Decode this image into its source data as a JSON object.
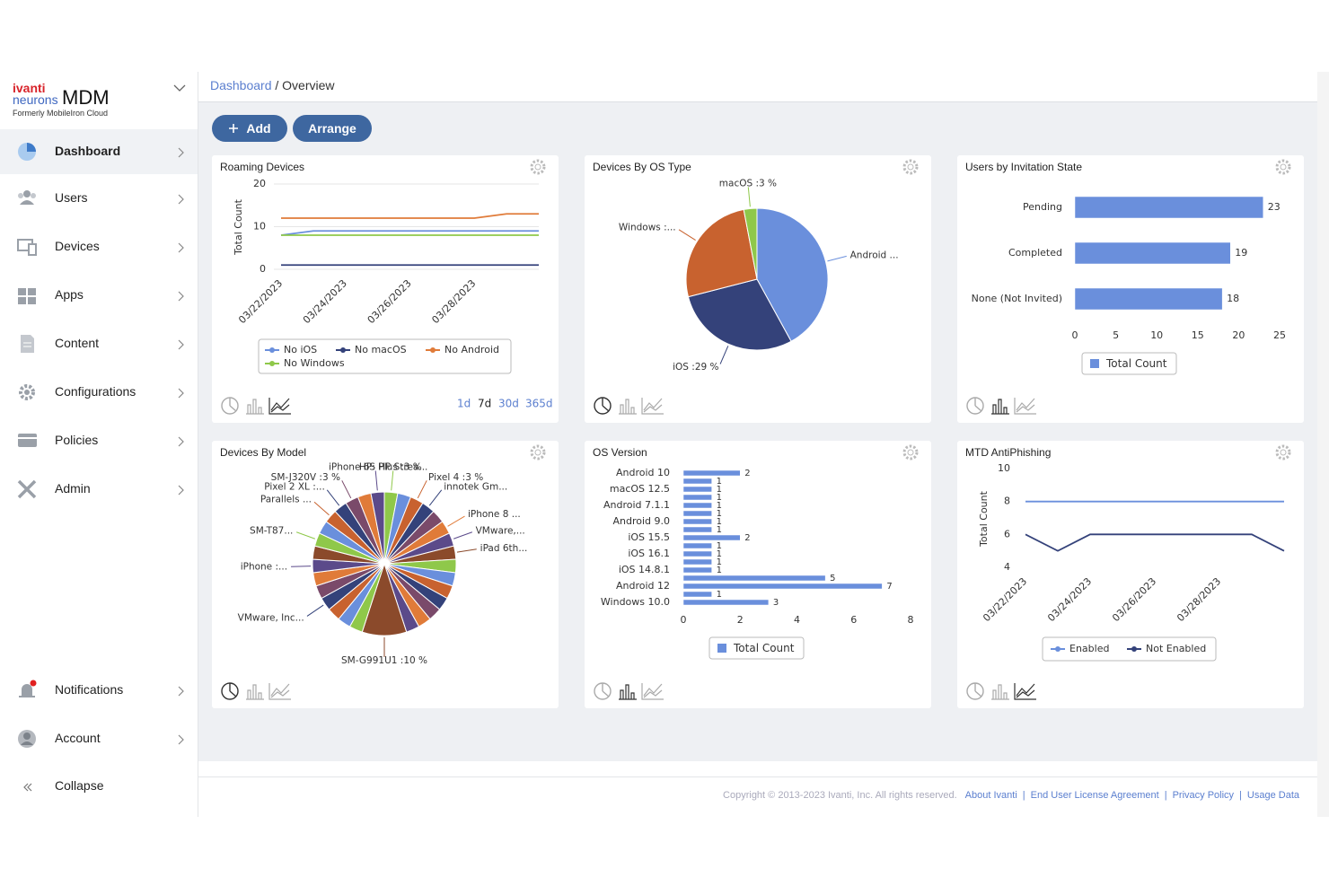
{
  "sidebar": {
    "brand": {
      "company": "ivanti",
      "line2": "neurons",
      "product": "MDM",
      "tagline": "Formerly MobileIron Cloud"
    },
    "nav": [
      "Dashboard",
      "Users",
      "Devices",
      "Apps",
      "Content",
      "Configurations",
      "Policies",
      "Admin"
    ],
    "bottom_nav": [
      "Notifications",
      "Account"
    ],
    "collapse": "Collapse"
  },
  "breadcrumb": {
    "parent": "Dashboard",
    "separator": "/",
    "current": "Overview"
  },
  "toolbar": {
    "add": "Add",
    "arrange": "Arrange"
  },
  "widgets": [
    {
      "title": "Roaming Devices",
      "ranges": [
        "1d",
        "7d",
        "30d",
        "365d"
      ],
      "active_range": 1,
      "chart": {
        "type": "line",
        "x": [
          "03/22/2023",
          "03/23/2023",
          "03/24/2023",
          "03/25/2023",
          "03/26/2023",
          "03/27/2023",
          "03/28/2023",
          "03/29/2023",
          "03/30/2023"
        ],
        "xticks": [
          "03/22/2023",
          "03/24/2023",
          "03/26/2023",
          "03/28/2023"
        ],
        "ylabel": "Total Count",
        "ylim": [
          0,
          20
        ],
        "yticks": [
          0,
          10,
          20
        ],
        "grid": true,
        "series": [
          {
            "name": "No iOS",
            "color": "#6a8fdc",
            "values": [
              8,
              9,
              9,
              9,
              9,
              9,
              9,
              9,
              9
            ]
          },
          {
            "name": "No macOS",
            "color": "#34427a",
            "values": [
              1,
              1,
              1,
              1,
              1,
              1,
              1,
              1,
              1
            ]
          },
          {
            "name": "No Android",
            "color": "#e07b39",
            "values": [
              12,
              12,
              12,
              12,
              12,
              12,
              12,
              13,
              13
            ]
          },
          {
            "name": "No Windows",
            "color": "#8fc84a",
            "values": [
              8,
              8,
              8,
              8,
              8,
              8,
              8,
              8,
              8
            ]
          }
        ]
      }
    },
    {
      "title": "Devices By OS Type",
      "chart": {
        "type": "pie",
        "labels": [
          "Android ...",
          "iOS :29 %",
          "Windows :...",
          "macOS :3 %"
        ],
        "values": [
          42,
          29,
          26,
          3
        ],
        "colors": [
          "#6a8fdc",
          "#34427a",
          "#c8622f",
          "#8fc84a"
        ]
      }
    },
    {
      "title": "Users by Invitation State",
      "chart": {
        "type": "hbar",
        "categories": [
          "Pending",
          "Completed",
          "None (Not Invited)"
        ],
        "xlim": [
          0,
          25
        ],
        "xticks": [
          0,
          5,
          10,
          15,
          20,
          25
        ],
        "series": [
          {
            "name": "Total Count",
            "color": "#6a8fdc",
            "values": [
              23,
              19,
              18
            ]
          }
        ]
      }
    },
    {
      "title": "Devices By Model",
      "chart": {
        "type": "pie",
        "labels": [
          "HP: HP Strea...",
          null,
          "Pixel 4 :3 %",
          "innotek Gm...",
          null,
          "iPhone 8 ...",
          "VMware,...",
          "iPad 6th...",
          null,
          null,
          null,
          null,
          null,
          null,
          null,
          "SM-G991U1 :10 %",
          null,
          null,
          null,
          "VMware, Inc...",
          null,
          null,
          "iPhone :...",
          null,
          "SM-T87...",
          null,
          "Parallels ...",
          "Pixel 2 XL :...",
          "SM-J320V :3 %",
          null,
          "iPhone 6S Plus :3 %"
        ],
        "values": [
          3,
          3,
          3,
          3,
          3,
          3,
          3,
          3,
          3,
          3,
          3,
          3,
          3,
          3,
          3,
          10,
          3,
          3,
          3,
          3,
          3,
          3,
          3,
          3,
          3,
          3,
          3,
          3,
          3,
          3,
          3
        ],
        "colors": [
          "#8fc84a",
          "#6a8fdc",
          "#c8622f",
          "#34427a",
          "#7a4a6a",
          "#e07b39",
          "#5b4a8a",
          "#8b4a2b"
        ]
      }
    },
    {
      "title": "OS Version",
      "chart": {
        "type": "hbar",
        "categories": [
          "Android 10",
          null,
          "macOS 12.5",
          null,
          "Android 7.1.1",
          null,
          "Android 9.0",
          null,
          "iOS 15.5",
          null,
          "iOS 16.1",
          null,
          "iOS 14.8.1",
          null,
          "Android 12",
          null,
          "Windows 10.0"
        ],
        "xlim": [
          0,
          8
        ],
        "xticks": [
          0,
          2,
          4,
          6,
          8
        ],
        "series": [
          {
            "name": "Total Count",
            "color": "#6a8fdc",
            "values": [
              2,
              1,
              1,
              1,
              1,
              1,
              1,
              1,
              2,
              1,
              1,
              1,
              1,
              5,
              7,
              1,
              3
            ]
          }
        ]
      }
    },
    {
      "title": "MTD AntiPhishing",
      "chart": {
        "type": "line",
        "x": [
          "03/22/2023",
          "03/23/2023",
          "03/24/2023",
          "03/25/2023",
          "03/26/2023",
          "03/27/2023",
          "03/28/2023",
          "03/29/2023",
          "03/30/2023"
        ],
        "xticks": [
          "03/22/2023",
          "03/24/2023",
          "03/26/2023",
          "03/28/2023"
        ],
        "ylabel": "Total Count",
        "ylim": [
          4,
          10
        ],
        "yticks": [
          4,
          6,
          8,
          10
        ],
        "grid": false,
        "series": [
          {
            "name": "Enabled",
            "color": "#6a8fdc",
            "values": [
              8,
              8,
              8,
              8,
              8,
              8,
              8,
              8,
              8
            ]
          },
          {
            "name": "Not Enabled",
            "color": "#34427a",
            "values": [
              6,
              5,
              6,
              6,
              6,
              6,
              6,
              6,
              5
            ]
          }
        ]
      }
    }
  ],
  "footer": {
    "copyright": "Copyright © 2013-2023 Ivanti, Inc. All rights reserved.",
    "separator": "|",
    "links": [
      "About Ivanti",
      "End User License Agreement",
      "Privacy Policy",
      "Usage Data"
    ]
  }
}
